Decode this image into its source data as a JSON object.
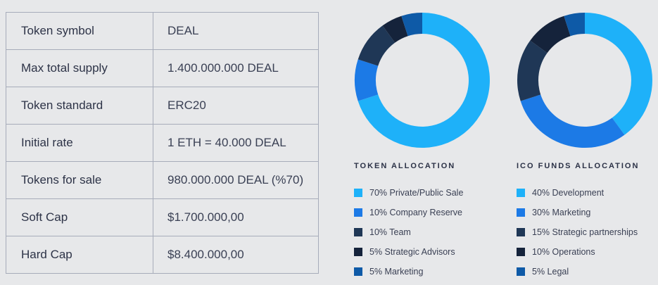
{
  "token_info": {
    "rows": [
      {
        "label": "Token symbol",
        "value": "DEAL"
      },
      {
        "label": "Max total supply",
        "value": "1.400.000.000 DEAL"
      },
      {
        "label": "Token standard",
        "value": "ERC20"
      },
      {
        "label": "Initial rate",
        "value": "1 ETH = 40.000 DEAL"
      },
      {
        "label": "Tokens for sale",
        "value": "980.000.000 DEAL (%70)"
      },
      {
        "label": "Soft Cap",
        "value": "$1.700.000,00"
      },
      {
        "label": "Hard Cap",
        "value": "$8.400.000,00"
      }
    ]
  },
  "chart_data": [
    {
      "type": "pie",
      "title": "TOKEN ALLOCATION",
      "categories": [
        "Private/Public Sale",
        "Company Reserve",
        "Team",
        "Strategic Advisors",
        "Marketing"
      ],
      "values": [
        70,
        10,
        10,
        5,
        5
      ],
      "legend_labels": [
        "70% Private/Public Sale",
        "10% Company Reserve",
        "10% Team",
        "5% Strategic Advisors",
        "5% Marketing"
      ],
      "colors": [
        "#1eb1f9",
        "#1c7ae6",
        "#1f3756",
        "#15233b",
        "#0e5aa7"
      ],
      "legend_position": "bottom"
    },
    {
      "type": "pie",
      "title": "ICO FUNDS ALLOCATION",
      "categories": [
        "Development",
        "Marketing",
        "Strategic partnerships",
        "Operations",
        "Legal"
      ],
      "values": [
        40,
        30,
        15,
        10,
        5
      ],
      "legend_labels": [
        "40% Development",
        "30% Marketing",
        "15% Strategic partnerships",
        "10% Operations",
        "5% Legal"
      ],
      "colors": [
        "#1eb1f9",
        "#1c7ae6",
        "#1f3756",
        "#15233b",
        "#0e5aa7"
      ],
      "legend_position": "bottom"
    }
  ]
}
